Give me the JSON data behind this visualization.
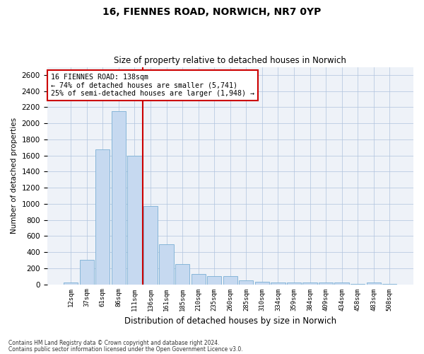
{
  "title_line1": "16, FIENNES ROAD, NORWICH, NR7 0YP",
  "title_line2": "Size of property relative to detached houses in Norwich",
  "xlabel": "Distribution of detached houses by size in Norwich",
  "ylabel": "Number of detached properties",
  "categories": [
    "12sqm",
    "37sqm",
    "61sqm",
    "86sqm",
    "111sqm",
    "136sqm",
    "161sqm",
    "185sqm",
    "210sqm",
    "235sqm",
    "260sqm",
    "285sqm",
    "310sqm",
    "334sqm",
    "359sqm",
    "384sqm",
    "409sqm",
    "434sqm",
    "458sqm",
    "483sqm",
    "508sqm"
  ],
  "values": [
    20,
    300,
    1680,
    2150,
    1600,
    970,
    500,
    250,
    125,
    100,
    100,
    50,
    30,
    20,
    20,
    20,
    20,
    20,
    5,
    20,
    5
  ],
  "bar_color": "#c6d9f0",
  "bar_edge_color": "#7aafd4",
  "vline_x_index": 5,
  "vline_color": "#cc0000",
  "annotation_box_text": "16 FIENNES ROAD: 138sqm\n← 74% of detached houses are smaller (5,741)\n25% of semi-detached houses are larger (1,948) →",
  "annotation_box_color": "#cc0000",
  "annotation_box_facecolor": "white",
  "ylim": [
    0,
    2700
  ],
  "yticks": [
    0,
    200,
    400,
    600,
    800,
    1000,
    1200,
    1400,
    1600,
    1800,
    2000,
    2200,
    2400,
    2600
  ],
  "grid_color": "#b0c4de",
  "background_color": "#eef2f8",
  "footer_line1": "Contains HM Land Registry data © Crown copyright and database right 2024.",
  "footer_line2": "Contains public sector information licensed under the Open Government Licence v3.0."
}
